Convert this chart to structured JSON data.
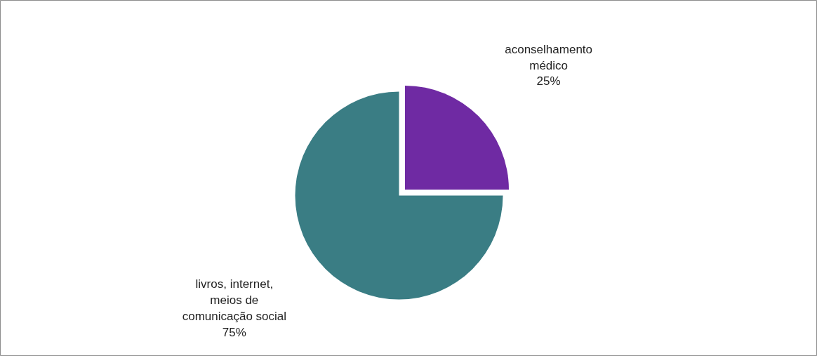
{
  "chart_data": {
    "type": "pie",
    "categories": [
      "aconselhamento médico",
      "livros, internet, meios de comunicação social"
    ],
    "values": [
      25,
      75
    ],
    "value_labels": [
      "25%",
      "75%"
    ],
    "colors": [
      "#6f2aa3",
      "#3a7d84"
    ]
  }
}
